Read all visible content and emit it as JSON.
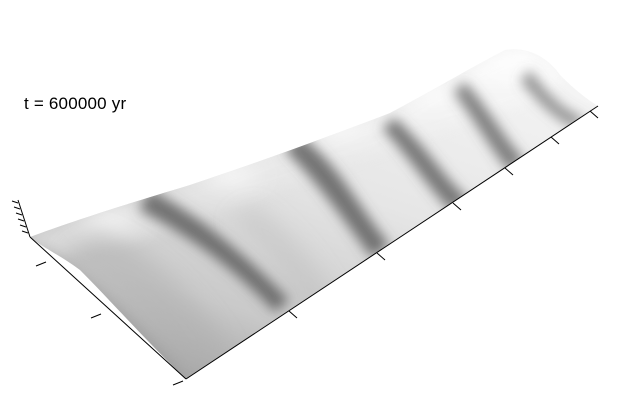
{
  "annotation": {
    "time_label": "t = 600000 yr"
  },
  "colors": {
    "background": "#ffffff",
    "surface_light": "#ffffff",
    "surface_mid": "#bdbdbd",
    "surface_dark": "#6a6a6a",
    "axes": "#000000"
  }
}
